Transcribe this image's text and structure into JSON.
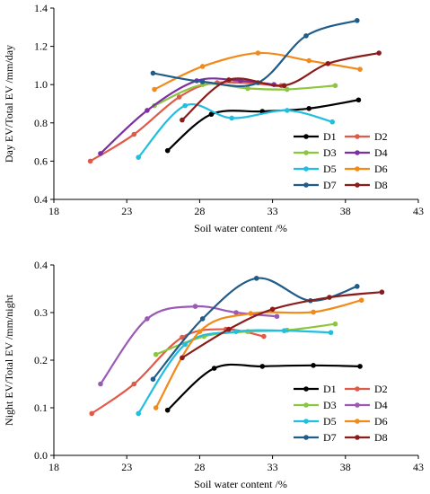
{
  "chart_data": [
    {
      "type": "line",
      "title": "",
      "xlabel": "Soil water content /%",
      "ylabel": "Day EV/Total EV  /mm/day",
      "xlim": [
        18,
        43
      ],
      "ylim": [
        0.4,
        1.4
      ],
      "xticks": [
        "18",
        "23",
        "28",
        "33",
        "38",
        "43"
      ],
      "yticks": [
        "0.4",
        "0.6",
        "0.8",
        "1.0",
        "1.2",
        "1.4"
      ],
      "grid": false,
      "legend_position": "bottom-right",
      "series": [
        {
          "name": "D1",
          "color": "#000000",
          "marker": "circle",
          "points": [
            [
              25.8,
              0.655
            ],
            [
              28.8,
              0.845
            ],
            [
              32.3,
              0.86
            ],
            [
              35.5,
              0.875
            ],
            [
              38.9,
              0.92
            ]
          ]
        },
        {
          "name": "D2",
          "color": "#E05A4A",
          "marker": "circle",
          "points": [
            [
              20.5,
              0.6
            ],
            [
              23.5,
              0.74
            ],
            [
              26.6,
              0.935
            ],
            [
              29.2,
              1.01
            ],
            [
              33.6,
              0.995
            ]
          ]
        },
        {
          "name": "D3",
          "color": "#8CC63E",
          "marker": "circle",
          "points": [
            [
              24.9,
              0.89
            ],
            [
              28.2,
              1.0
            ],
            [
              31.3,
              0.98
            ],
            [
              34.0,
              0.975
            ],
            [
              37.3,
              0.995
            ]
          ]
        },
        {
          "name": "D4",
          "color": "#7B2FA2",
          "marker": "circle",
          "points": [
            [
              21.2,
              0.64
            ],
            [
              24.4,
              0.865
            ],
            [
              27.8,
              1.02
            ],
            [
              30.8,
              1.02
            ],
            [
              33.1,
              1.0
            ]
          ]
        },
        {
          "name": "D5",
          "color": "#21BEE0",
          "marker": "circle",
          "points": [
            [
              23.8,
              0.62
            ],
            [
              27.0,
              0.89
            ],
            [
              30.2,
              0.825
            ],
            [
              34.0,
              0.865
            ],
            [
              37.1,
              0.805
            ]
          ]
        },
        {
          "name": "D6",
          "color": "#F28A1A",
          "marker": "circle",
          "points": [
            [
              24.9,
              0.975
            ],
            [
              28.2,
              1.095
            ],
            [
              32.0,
              1.165
            ],
            [
              35.5,
              1.125
            ],
            [
              39.0,
              1.08
            ]
          ]
        },
        {
          "name": "D7",
          "color": "#1F5C8A",
          "marker": "circle",
          "points": [
            [
              24.8,
              1.06
            ],
            [
              28.2,
              1.015
            ],
            [
              32.0,
              1.01
            ],
            [
              35.3,
              1.255
            ],
            [
              38.8,
              1.335
            ]
          ]
        },
        {
          "name": "D8",
          "color": "#8B1C1C",
          "marker": "circle",
          "points": [
            [
              26.8,
              0.815
            ],
            [
              30.0,
              1.025
            ],
            [
              33.8,
              0.995
            ],
            [
              36.8,
              1.11
            ],
            [
              40.3,
              1.165
            ]
          ]
        }
      ]
    },
    {
      "type": "line",
      "title": "",
      "xlabel": "Soil water content /%",
      "ylabel": "Night EV/Total EV  /mm/night",
      "xlim": [
        18,
        43
      ],
      "ylim": [
        0.0,
        0.4
      ],
      "xticks": [
        "18",
        "23",
        "28",
        "33",
        "38",
        "43"
      ],
      "yticks": [
        "0.0",
        "0.1",
        "0.2",
        "0.3",
        "0.4"
      ],
      "grid": false,
      "legend_position": "bottom-right",
      "series": [
        {
          "name": "D1",
          "color": "#000000",
          "marker": "circle",
          "points": [
            [
              25.8,
              0.095
            ],
            [
              29.0,
              0.183
            ],
            [
              32.3,
              0.187
            ],
            [
              35.8,
              0.189
            ],
            [
              39.0,
              0.187
            ]
          ]
        },
        {
          "name": "D2",
          "color": "#E05A4A",
          "marker": "circle",
          "points": [
            [
              20.6,
              0.088
            ],
            [
              23.5,
              0.15
            ],
            [
              26.8,
              0.248
            ],
            [
              29.8,
              0.265
            ],
            [
              32.4,
              0.25
            ]
          ]
        },
        {
          "name": "D3",
          "color": "#8CC63E",
          "marker": "circle",
          "points": [
            [
              25.0,
              0.212
            ],
            [
              28.3,
              0.25
            ],
            [
              31.3,
              0.26
            ],
            [
              34.0,
              0.263
            ],
            [
              37.3,
              0.276
            ]
          ]
        },
        {
          "name": "D4",
          "color": "#9B59B6",
          "marker": "circle",
          "points": [
            [
              21.2,
              0.15
            ],
            [
              24.4,
              0.287
            ],
            [
              27.7,
              0.313
            ],
            [
              30.5,
              0.3
            ],
            [
              33.3,
              0.292
            ]
          ]
        },
        {
          "name": "D5",
          "color": "#21BEE0",
          "marker": "circle",
          "points": [
            [
              23.8,
              0.088
            ],
            [
              27.0,
              0.233
            ],
            [
              30.5,
              0.26
            ],
            [
              33.8,
              0.262
            ],
            [
              37.0,
              0.258
            ]
          ]
        },
        {
          "name": "D6",
          "color": "#F28A1A",
          "marker": "circle",
          "points": [
            [
              25.0,
              0.1
            ],
            [
              28.0,
              0.26
            ],
            [
              31.5,
              0.298
            ],
            [
              35.8,
              0.301
            ],
            [
              39.1,
              0.326
            ]
          ]
        },
        {
          "name": "D7",
          "color": "#1F5C8A",
          "marker": "circle",
          "points": [
            [
              24.8,
              0.16
            ],
            [
              28.2,
              0.287
            ],
            [
              31.9,
              0.372
            ],
            [
              35.6,
              0.325
            ],
            [
              38.8,
              0.355
            ]
          ]
        },
        {
          "name": "D8",
          "color": "#8B1C1C",
          "marker": "circle",
          "points": [
            [
              26.8,
              0.205
            ],
            [
              30.0,
              0.265
            ],
            [
              33.0,
              0.307
            ],
            [
              36.9,
              0.332
            ],
            [
              40.5,
              0.343
            ]
          ]
        }
      ]
    }
  ]
}
